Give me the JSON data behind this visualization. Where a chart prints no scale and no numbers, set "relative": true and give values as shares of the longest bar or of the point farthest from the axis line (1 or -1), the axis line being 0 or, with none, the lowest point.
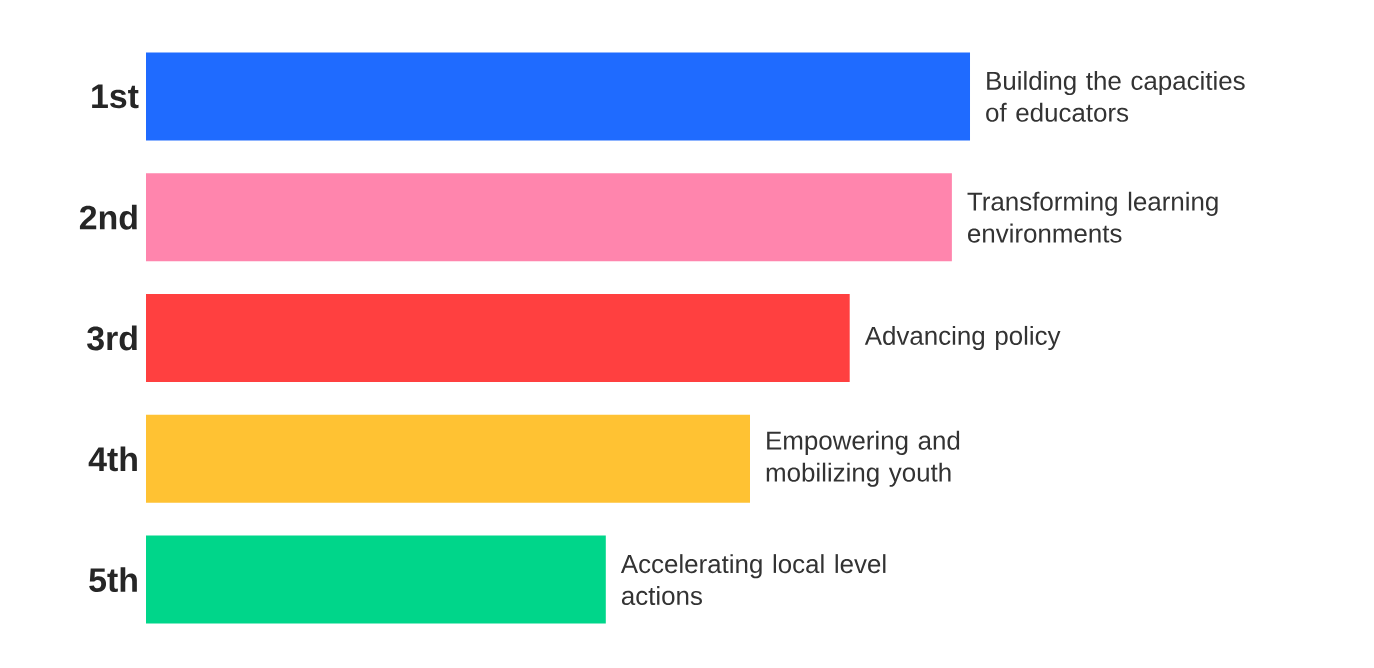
{
  "chart_data": {
    "type": "bar",
    "orientation": "horizontal",
    "relative": true,
    "tick_labels": "y",
    "categories": [
      "1st",
      "2nd",
      "3rd",
      "4th",
      "5th"
    ],
    "values": [
      1,
      0.978,
      0.854,
      0.733,
      0.558
    ],
    "colors": [
      "#1f6bff",
      "#ff85ad",
      "#ff4040",
      "#ffc233",
      "#00d68a"
    ],
    "annotations": [
      {
        "text": "Building the capacities of educators",
        "x": 1,
        "y": "1st"
      },
      {
        "text": "Transforming learning environments",
        "x": 0.978,
        "y": "2nd"
      },
      {
        "text": "Advancing policy",
        "x": 0.854,
        "y": "3rd"
      },
      {
        "text": "Empowering and mobilizing youth",
        "x": 0.733,
        "y": "4th"
      },
      {
        "text": "Accelerating local level actions",
        "x": 0.558,
        "y": "5th"
      }
    ]
  }
}
